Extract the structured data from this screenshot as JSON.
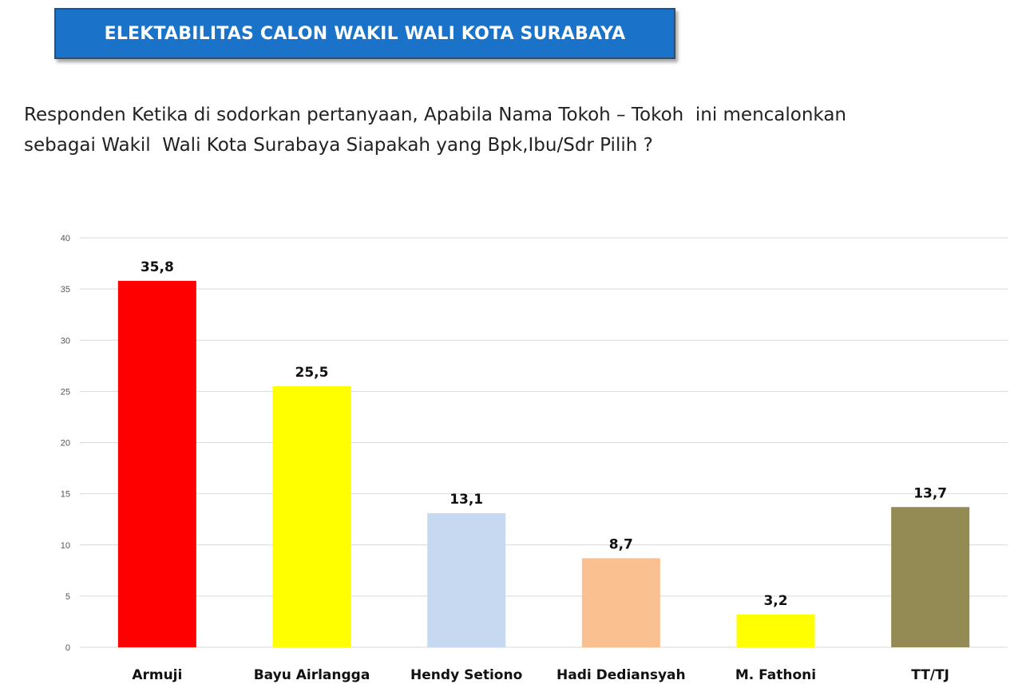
{
  "header": {
    "title": "ELEKTABILITAS CALON WAKIL WALI KOTA SURABAYA",
    "banner_color": "#1a73c8"
  },
  "question": {
    "line1": "Responden Ketika di sodorkan pertanyaan, Apabila Nama Tokoh – Tokoh  ini mencalonkan",
    "line2": "sebagai Wakil  Wali Kota Surabaya Siapakah yang Bpk,Ibu/Sdr Pilih ?"
  },
  "chart_data": {
    "type": "bar",
    "categories": [
      "Armuji",
      "Bayu Airlangga",
      "Hendy Setiono",
      "Hadi Dediansyah",
      "M. Fathoni",
      "TT/TJ"
    ],
    "values": [
      35.8,
      25.5,
      13.1,
      8.7,
      3.2,
      13.7
    ],
    "value_labels": [
      "35,8",
      "25,5",
      "13,1",
      "8,7",
      "3,2",
      "13,7"
    ],
    "colors": [
      "#ff0000",
      "#ffff00",
      "#c6d9f0",
      "#fac090",
      "#ffff00",
      "#948a54"
    ],
    "yticks": [
      "0",
      "5",
      "10",
      "15",
      "20",
      "25",
      "30",
      "35",
      "40"
    ],
    "ylim": [
      0,
      40
    ],
    "grid": true,
    "legend": "none"
  }
}
